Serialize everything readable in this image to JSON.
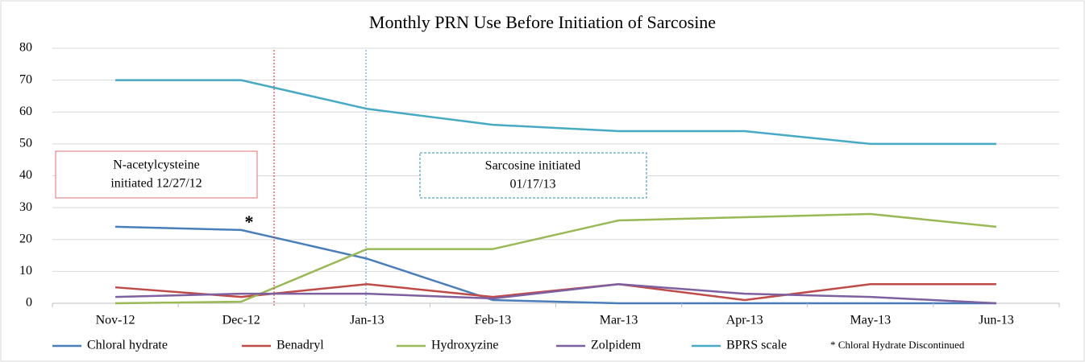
{
  "chart_data": {
    "type": "line",
    "title": "Monthly PRN Use Before Initiation of Sarcosine",
    "categories": [
      "Nov-12",
      "Dec-12",
      "Jan-13",
      "Feb-13",
      "Mar-13",
      "Apr-13",
      "May-13",
      "Jun-13"
    ],
    "series": [
      {
        "name": "Chloral hydrate",
        "color": "#4a7ebb",
        "values": [
          24,
          23,
          14,
          1,
          0,
          0,
          0,
          0
        ]
      },
      {
        "name": "Benadryl",
        "color": "#be4b48",
        "values": [
          5,
          2,
          6,
          2,
          6,
          1,
          6,
          6
        ]
      },
      {
        "name": "Hydroxyzine",
        "color": "#98b954",
        "values": [
          0,
          0.5,
          17,
          17,
          26,
          27,
          28,
          24
        ]
      },
      {
        "name": "Zolpidem",
        "color": "#7d60a0",
        "values": [
          2,
          3,
          3,
          1.5,
          6,
          3,
          2,
          0
        ]
      },
      {
        "name": "BPRS scale",
        "color": "#46aac5",
        "values": [
          70,
          70,
          61,
          56,
          54,
          54,
          50,
          50
        ]
      }
    ],
    "ylim": [
      0,
      80
    ],
    "yticks": [
      0,
      10,
      20,
      30,
      40,
      50,
      60,
      70,
      80
    ],
    "grid": true,
    "annotations": {
      "nac": [
        "N-acetylcysteine",
        "initiated 12/27/12"
      ],
      "sarcosine": [
        "Sarcosine initiated",
        "01/17/13"
      ],
      "star": "*",
      "note": "* Chloral Hydrate Discontinued"
    }
  }
}
